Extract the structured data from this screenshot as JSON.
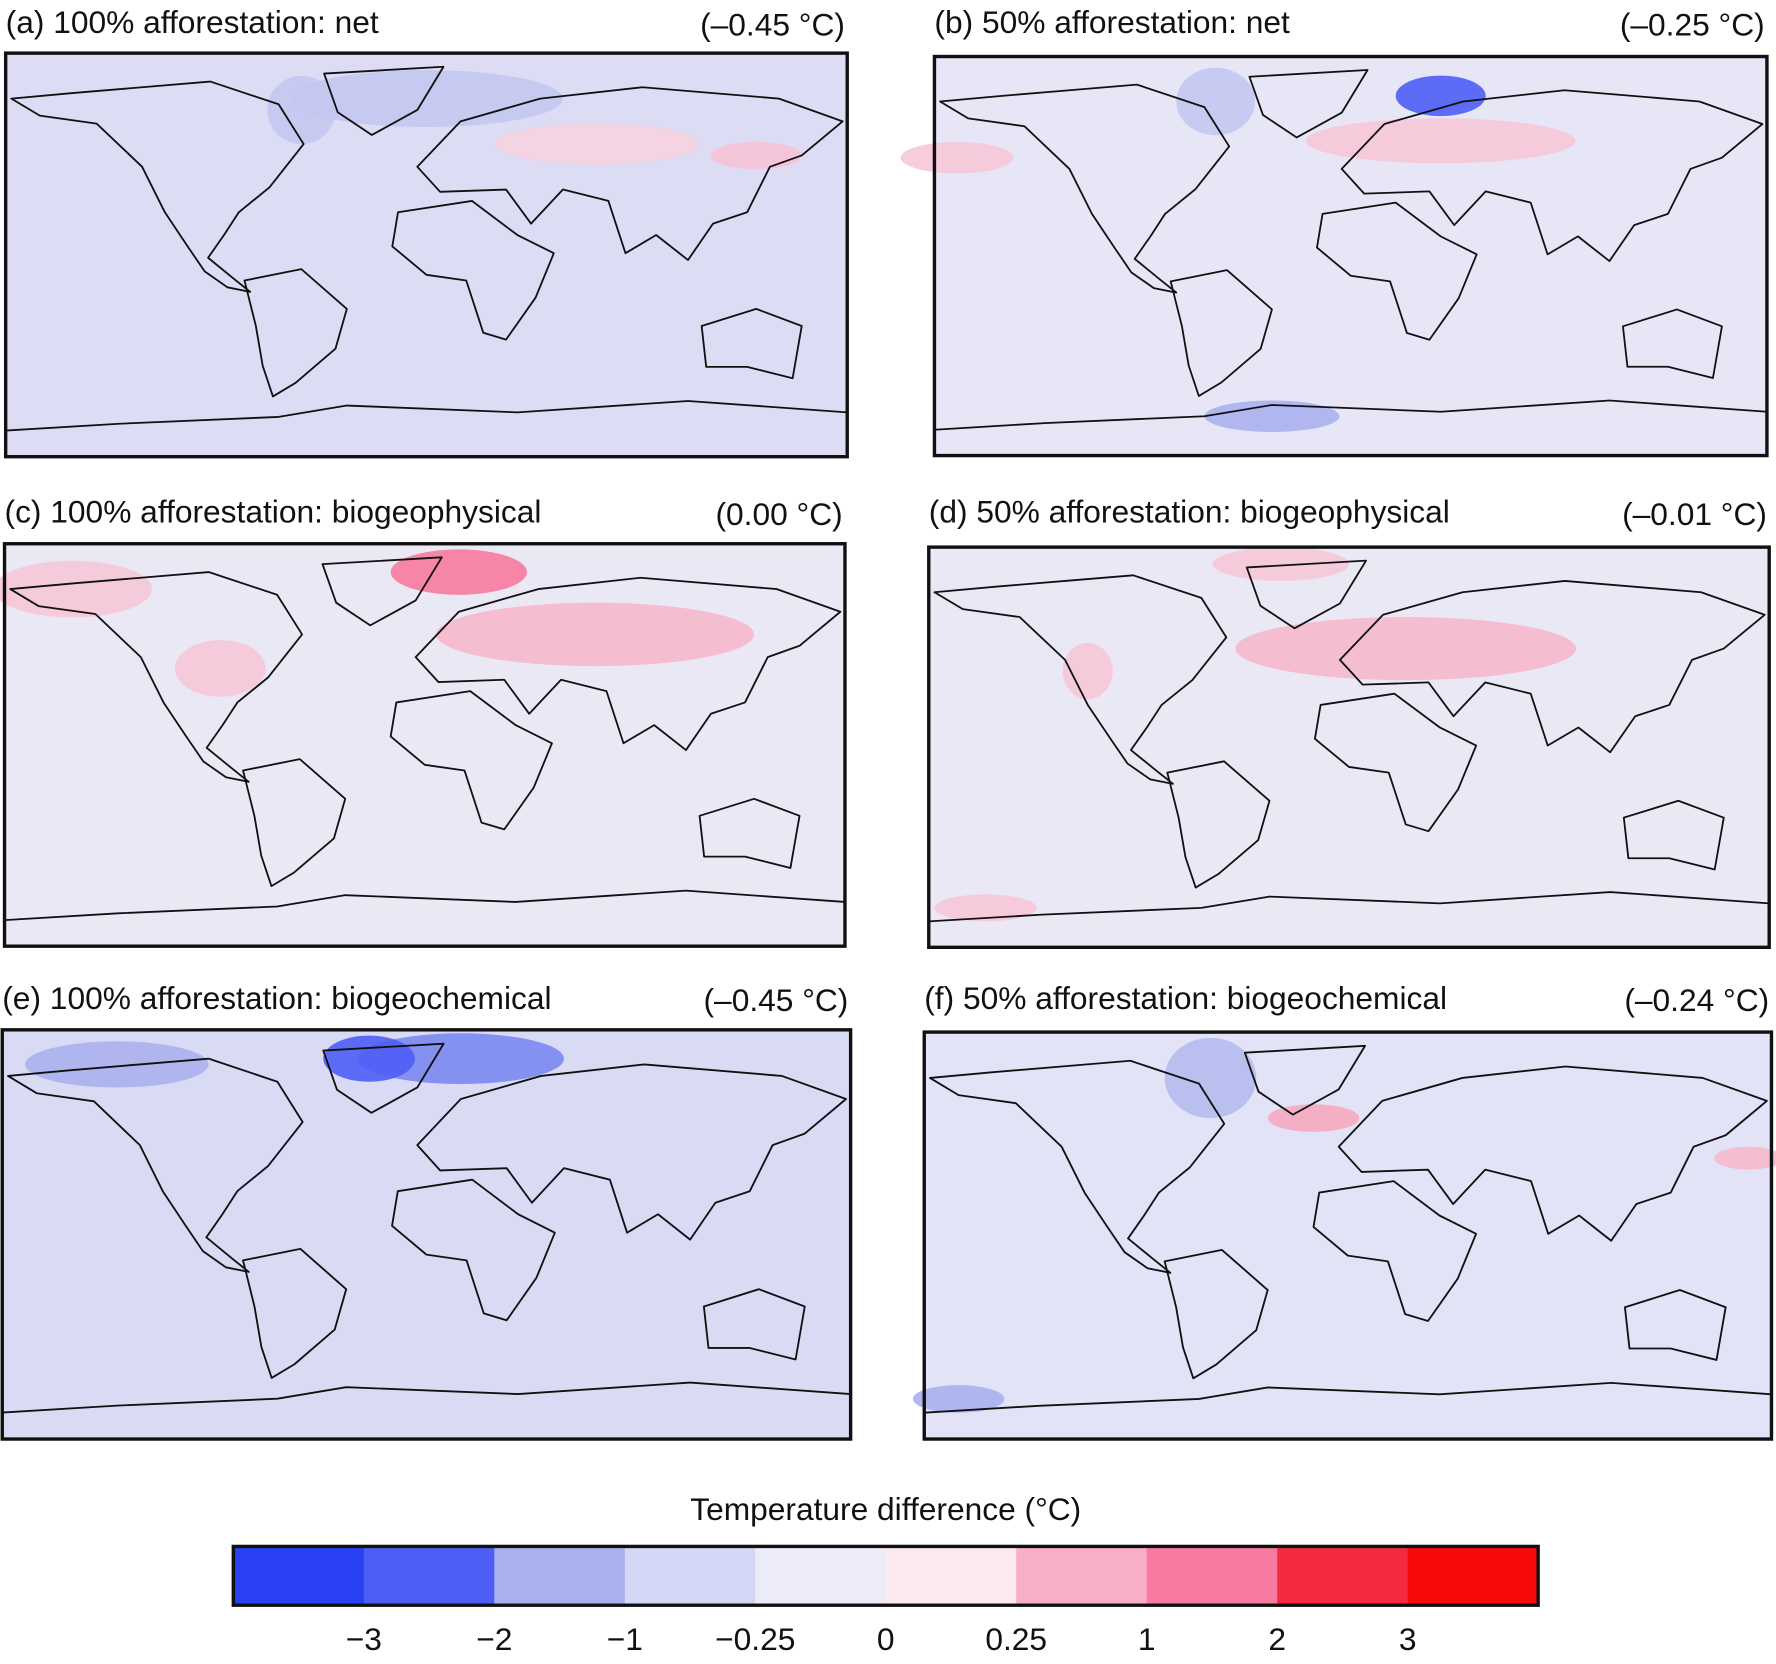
{
  "panels": [
    {
      "title": "(a) 100% afforestation: net",
      "mean": "(–0.45 °C)"
    },
    {
      "title": "(b) 50% afforestation: net",
      "mean": "(–0.25 °C)"
    },
    {
      "title": "(c) 100% afforestation: biogeophysical",
      "mean": "(0.00 °C)"
    },
    {
      "title": "(d) 50% afforestation: biogeophysical",
      "mean": "(–0.01 °C)"
    },
    {
      "title": "(e) 100% afforestation: biogeochemical",
      "mean": "(–0.45 °C)"
    },
    {
      "title": "(f) 50% afforestation: biogeochemical",
      "mean": "(–0.24 °C)"
    }
  ],
  "colorbar": {
    "label": "Temperature difference (°C)",
    "colors": [
      "#2a40f5",
      "#4d5ef5",
      "#a8b0ee",
      "#d3d6f4",
      "#ececf8",
      "#fbeaf0",
      "#f9aec8",
      "#f77aa0",
      "#f52a40",
      "#f90a0a"
    ],
    "ticks": [
      {
        "value": -3,
        "label": "−3"
      },
      {
        "value": -2,
        "label": "−2"
      },
      {
        "value": -1,
        "label": "−1"
      },
      {
        "value": -0.25,
        "label": "−0.25"
      },
      0,
      0.25,
      1,
      2,
      3
    ]
  }
}
